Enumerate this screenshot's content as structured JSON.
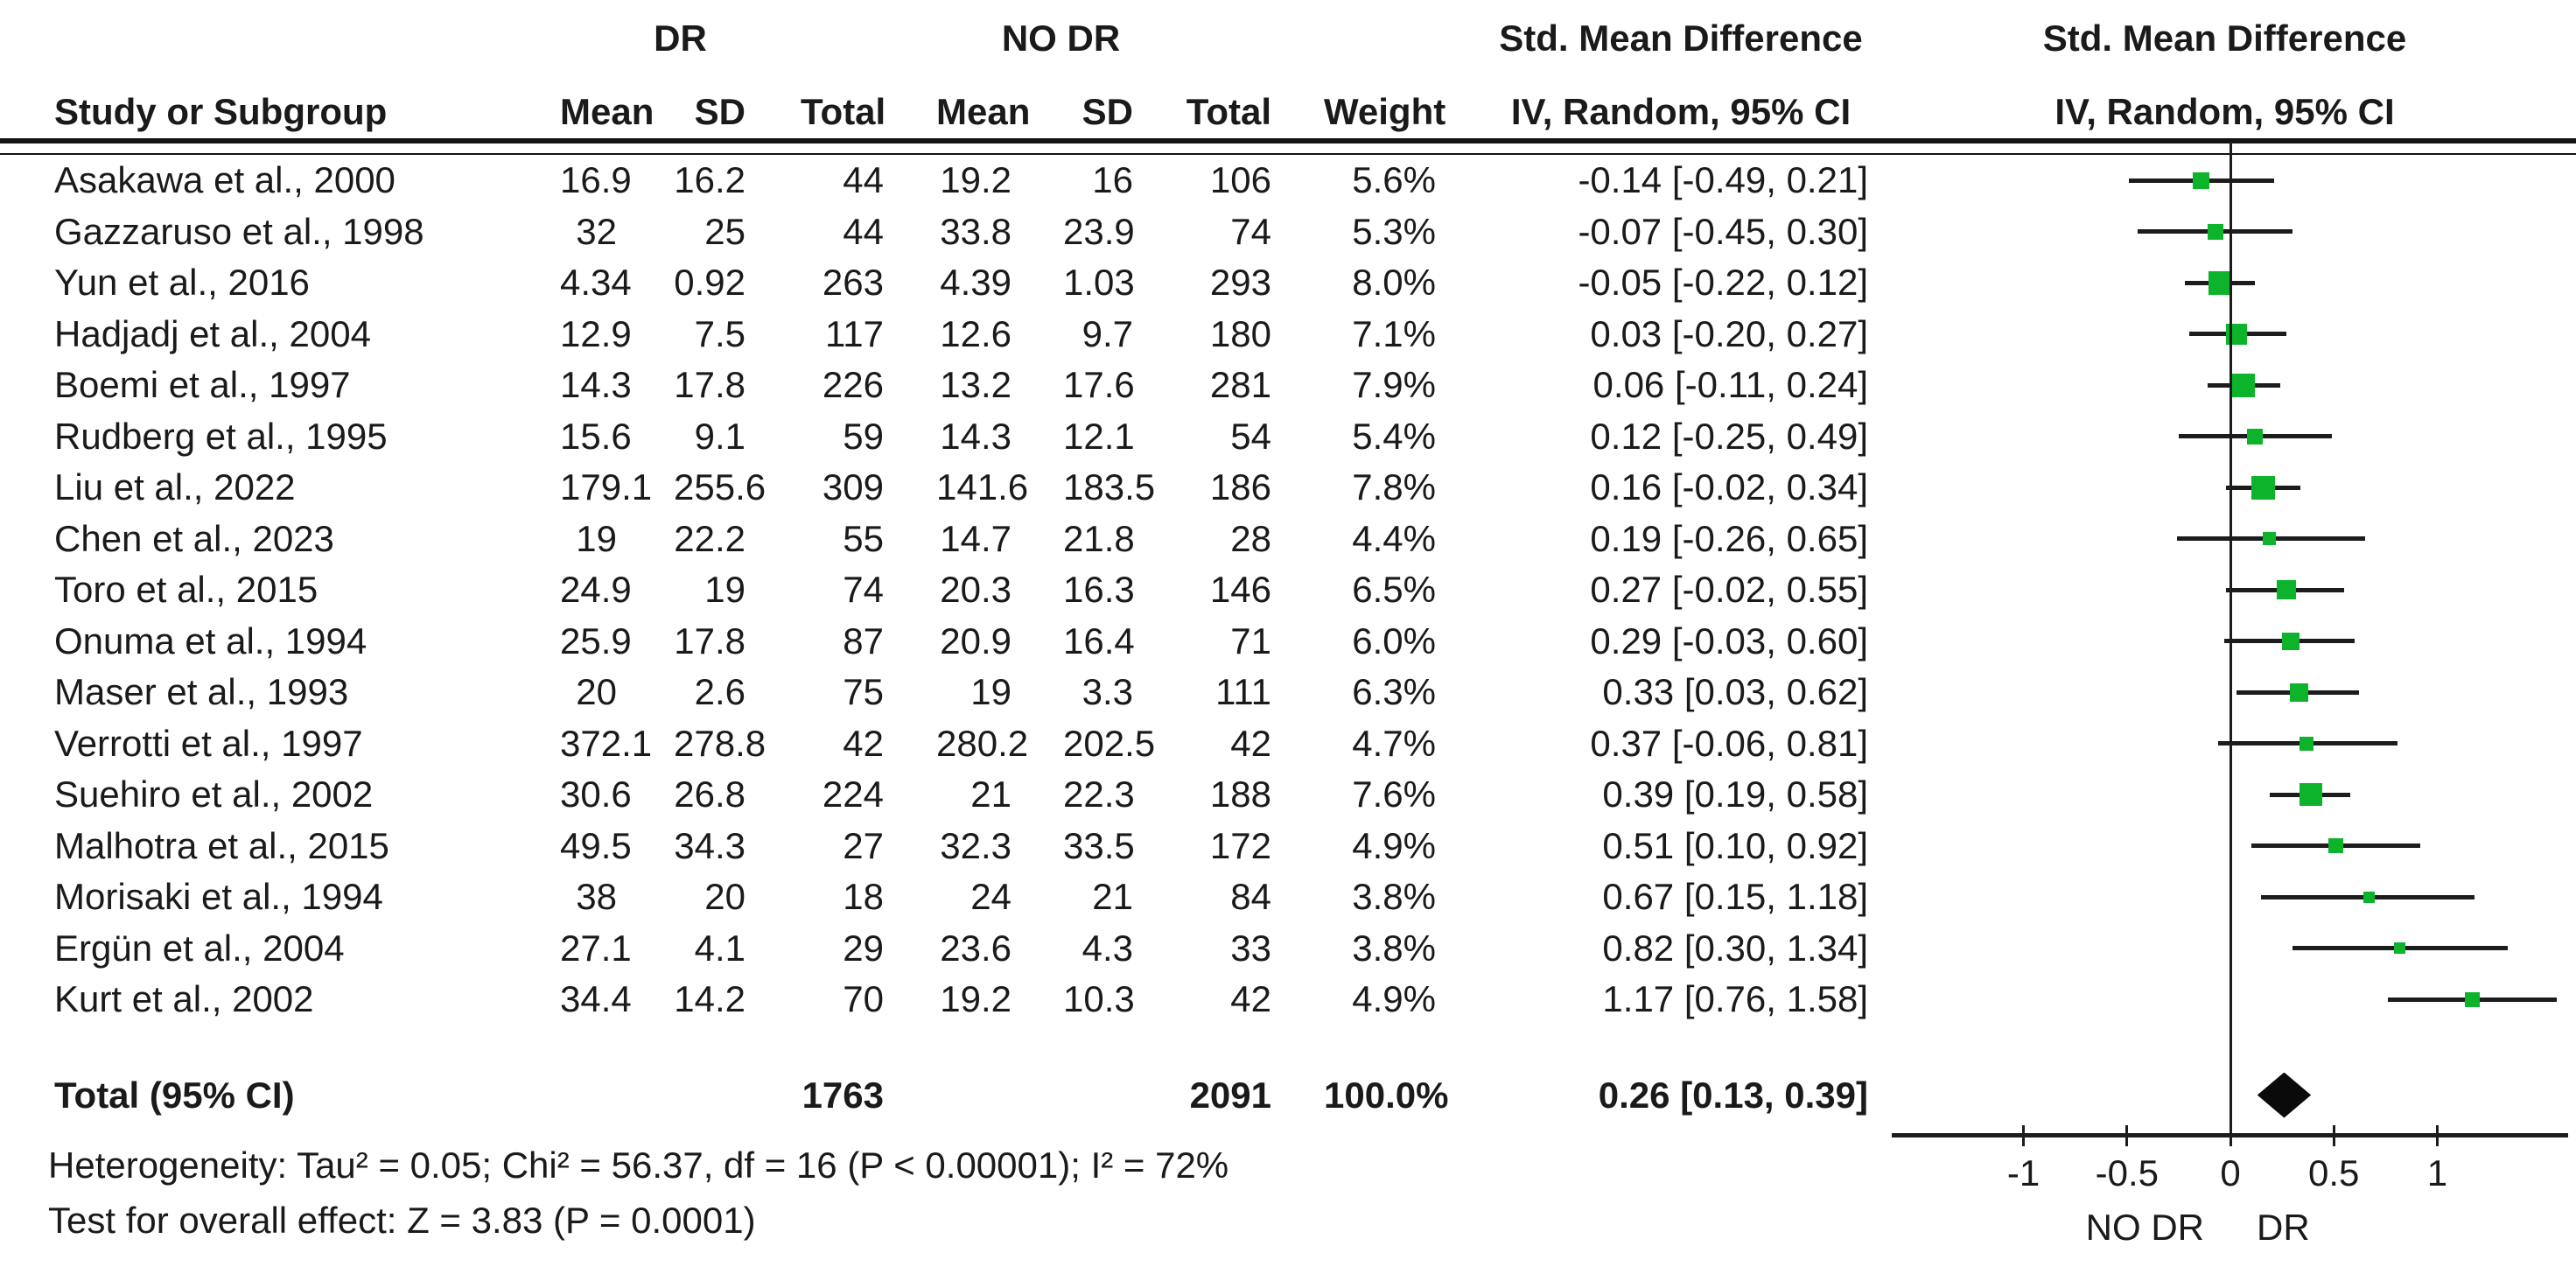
{
  "table": {
    "group1_label": "DR",
    "group2_label": "NO DR",
    "effect_col_header_line1": "Std. Mean Difference",
    "effect_col_header_line2": "IV, Random, 95% CI",
    "plot_header_line1": "Std. Mean Difference",
    "plot_header_line2": "IV, Random, 95% CI",
    "col_headers": {
      "study": "Study or Subgroup",
      "mean": "Mean",
      "sd": "SD",
      "total": "Total",
      "weight": "Weight"
    },
    "total_row": {
      "label": "Total (95% CI)",
      "dr_total": "1763",
      "nodr_total": "2091",
      "weight": "100.0%",
      "ci_text": "0.26 [0.13, 0.39]"
    },
    "footer_lines": [
      "Heterogeneity: Tau² = 0.05; Chi² = 56.37, df = 16 (P < 0.00001); I² = 72%",
      "Test for overall effect: Z = 3.83 (P = 0.0001)"
    ]
  },
  "plot": {
    "marker_color": "#0db32b",
    "line_color": "#1c1c1c",
    "left_group_label": "NO DR",
    "right_group_label": "DR"
  },
  "chart_data": {
    "type": "scatter",
    "subtype": "forest-plot",
    "title": "Std. Mean Difference, IV, Random, 95% CI",
    "xlabel_left": "NO DR",
    "xlabel_right": "DR",
    "axis": {
      "xmin": -1.726,
      "xmax": 1.671,
      "ticks": [
        -1,
        -0.5,
        0,
        0.5,
        1
      ],
      "tick_labels": [
        "-1",
        "-0.5",
        "0",
        "0.5",
        "1"
      ]
    },
    "summary": {
      "est": 0.26,
      "lo": 0.13,
      "hi": 0.39
    },
    "rows": [
      {
        "study": "Asakawa et al., 2000",
        "dr_mean": "16.9",
        "dr_sd": "16.2",
        "dr_total": "44",
        "nodr_mean": "19.2",
        "nodr_sd": "16",
        "nodr_total": "106",
        "weight": "5.6%",
        "weight_val": 5.6,
        "ci_text": "-0.14 [-0.49, 0.21]",
        "est": -0.14,
        "lo": -0.49,
        "hi": 0.21
      },
      {
        "study": "Gazzaruso et al., 1998",
        "dr_mean": "32",
        "dr_sd": "25",
        "dr_total": "44",
        "nodr_mean": "33.8",
        "nodr_sd": "23.9",
        "nodr_total": "74",
        "weight": "5.3%",
        "weight_val": 5.3,
        "ci_text": "-0.07 [-0.45, 0.30]",
        "est": -0.07,
        "lo": -0.45,
        "hi": 0.3
      },
      {
        "study": "Yun et al., 2016",
        "dr_mean": "4.34",
        "dr_sd": "0.92",
        "dr_total": "263",
        "nodr_mean": "4.39",
        "nodr_sd": "1.03",
        "nodr_total": "293",
        "weight": "8.0%",
        "weight_val": 8.0,
        "ci_text": "-0.05 [-0.22, 0.12]",
        "est": -0.05,
        "lo": -0.22,
        "hi": 0.12
      },
      {
        "study": "Hadjadj et al., 2004",
        "dr_mean": "12.9",
        "dr_sd": "7.5",
        "dr_total": "117",
        "nodr_mean": "12.6",
        "nodr_sd": "9.7",
        "nodr_total": "180",
        "weight": "7.1%",
        "weight_val": 7.1,
        "ci_text": "0.03 [-0.20, 0.27]",
        "est": 0.03,
        "lo": -0.2,
        "hi": 0.27
      },
      {
        "study": "Boemi et al., 1997",
        "dr_mean": "14.3",
        "dr_sd": "17.8",
        "dr_total": "226",
        "nodr_mean": "13.2",
        "nodr_sd": "17.6",
        "nodr_total": "281",
        "weight": "7.9%",
        "weight_val": 7.9,
        "ci_text": "0.06 [-0.11, 0.24]",
        "est": 0.06,
        "lo": -0.11,
        "hi": 0.24
      },
      {
        "study": "Rudberg et al., 1995",
        "dr_mean": "15.6",
        "dr_sd": "9.1",
        "dr_total": "59",
        "nodr_mean": "14.3",
        "nodr_sd": "12.1",
        "nodr_total": "54",
        "weight": "5.4%",
        "weight_val": 5.4,
        "ci_text": "0.12 [-0.25, 0.49]",
        "est": 0.12,
        "lo": -0.25,
        "hi": 0.49
      },
      {
        "study": "Liu et al., 2022",
        "dr_mean": "179.1",
        "dr_sd": "255.6",
        "dr_total": "309",
        "nodr_mean": "141.6",
        "nodr_sd": "183.5",
        "nodr_total": "186",
        "weight": "7.8%",
        "weight_val": 7.8,
        "ci_text": "0.16 [-0.02, 0.34]",
        "est": 0.16,
        "lo": -0.02,
        "hi": 0.34
      },
      {
        "study": "Chen et al., 2023",
        "dr_mean": "19",
        "dr_sd": "22.2",
        "dr_total": "55",
        "nodr_mean": "14.7",
        "nodr_sd": "21.8",
        "nodr_total": "28",
        "weight": "4.4%",
        "weight_val": 4.4,
        "ci_text": "0.19 [-0.26, 0.65]",
        "est": 0.19,
        "lo": -0.26,
        "hi": 0.65
      },
      {
        "study": "Toro et al., 2015",
        "dr_mean": "24.9",
        "dr_sd": "19",
        "dr_total": "74",
        "nodr_mean": "20.3",
        "nodr_sd": "16.3",
        "nodr_total": "146",
        "weight": "6.5%",
        "weight_val": 6.5,
        "ci_text": "0.27 [-0.02, 0.55]",
        "est": 0.27,
        "lo": -0.02,
        "hi": 0.55
      },
      {
        "study": "Onuma et al., 1994",
        "dr_mean": "25.9",
        "dr_sd": "17.8",
        "dr_total": "87",
        "nodr_mean": "20.9",
        "nodr_sd": "16.4",
        "nodr_total": "71",
        "weight": "6.0%",
        "weight_val": 6.0,
        "ci_text": "0.29 [-0.03, 0.60]",
        "est": 0.29,
        "lo": -0.03,
        "hi": 0.6
      },
      {
        "study": "Maser et al., 1993",
        "dr_mean": "20",
        "dr_sd": "2.6",
        "dr_total": "75",
        "nodr_mean": "19",
        "nodr_sd": "3.3",
        "nodr_total": "111",
        "weight": "6.3%",
        "weight_val": 6.3,
        "ci_text": "0.33 [0.03, 0.62]",
        "est": 0.33,
        "lo": 0.03,
        "hi": 0.62
      },
      {
        "study": "Verrotti et al., 1997",
        "dr_mean": "372.1",
        "dr_sd": "278.8",
        "dr_total": "42",
        "nodr_mean": "280.2",
        "nodr_sd": "202.5",
        "nodr_total": "42",
        "weight": "4.7%",
        "weight_val": 4.7,
        "ci_text": "0.37 [-0.06, 0.81]",
        "est": 0.37,
        "lo": -0.06,
        "hi": 0.81
      },
      {
        "study": "Suehiro et al., 2002",
        "dr_mean": "30.6",
        "dr_sd": "26.8",
        "dr_total": "224",
        "nodr_mean": "21",
        "nodr_sd": "22.3",
        "nodr_total": "188",
        "weight": "7.6%",
        "weight_val": 7.6,
        "ci_text": "0.39 [0.19, 0.58]",
        "est": 0.39,
        "lo": 0.19,
        "hi": 0.58
      },
      {
        "study": "Malhotra et al., 2015",
        "dr_mean": "49.5",
        "dr_sd": "34.3",
        "dr_total": "27",
        "nodr_mean": "32.3",
        "nodr_sd": "33.5",
        "nodr_total": "172",
        "weight": "4.9%",
        "weight_val": 4.9,
        "ci_text": "0.51 [0.10, 0.92]",
        "est": 0.51,
        "lo": 0.1,
        "hi": 0.92
      },
      {
        "study": "Morisaki et al., 1994",
        "dr_mean": "38",
        "dr_sd": "20",
        "dr_total": "18",
        "nodr_mean": "24",
        "nodr_sd": "21",
        "nodr_total": "84",
        "weight": "3.8%",
        "weight_val": 3.8,
        "ci_text": "0.67 [0.15, 1.18]",
        "est": 0.67,
        "lo": 0.15,
        "hi": 1.18
      },
      {
        "study": "Ergün et al., 2004",
        "dr_mean": "27.1",
        "dr_sd": "4.1",
        "dr_total": "29",
        "nodr_mean": "23.6",
        "nodr_sd": "4.3",
        "nodr_total": "33",
        "weight": "3.8%",
        "weight_val": 3.8,
        "ci_text": "0.82 [0.30, 1.34]",
        "est": 0.82,
        "lo": 0.3,
        "hi": 1.34
      },
      {
        "study": "Kurt et al., 2002",
        "dr_mean": "34.4",
        "dr_sd": "14.2",
        "dr_total": "70",
        "nodr_mean": "19.2",
        "nodr_sd": "10.3",
        "nodr_total": "42",
        "weight": "4.9%",
        "weight_val": 4.9,
        "ci_text": "1.17 [0.76, 1.58]",
        "est": 1.17,
        "lo": 0.76,
        "hi": 1.58
      }
    ]
  }
}
